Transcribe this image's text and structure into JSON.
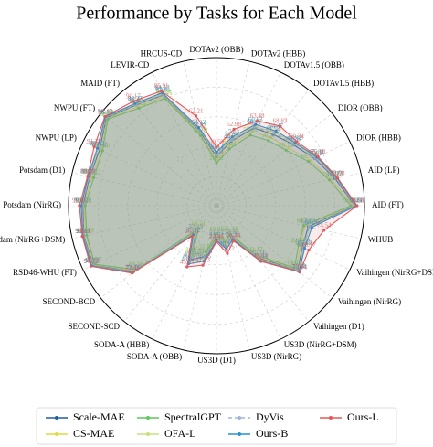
{
  "chart_data": {
    "type": "radar",
    "title": "Performance by Tasks for Each Model",
    "categories": [
      "AID (FT)",
      "AID (LP)",
      "DIOR (HBB)",
      "DIOR (OBB)",
      "DOTAv1.5 (HBB)",
      "DOTAv1.5 (OBB)",
      "DOTAv2 (HBB)",
      "DOTAv2 (OBB)",
      "HRCUS-CD",
      "LEVIR-CD",
      "MAID (FT)",
      "NWPU (FT)",
      "NWPU (LP)",
      "Potsdam (D1)",
      "Potsdam (NirRG)",
      "Potsdam (NirRG+DSM)",
      "RSD46-WHU (FT)",
      "SECOND-BCD",
      "SECOND-SCD",
      "SODA-A (HBB)",
      "SODA-A (OBB)",
      "US3D (D1)",
      "US3D (NirRG)",
      "US3D (NirRG+DSM)",
      "Vaihingen (D1)",
      "Vaihingen (NirRG)",
      "Vaihingen (NirRG+DSM)",
      "WHUB"
    ],
    "ylim": [
      0,
      100
    ],
    "yticks": [
      20,
      40,
      60,
      80,
      100
    ],
    "grid": true,
    "legend": "bottom",
    "series": [
      {
        "name": "Scale-MAE",
        "color": "#1f5fa0",
        "values": [
          93.45,
          82.17,
          73.61,
          66.23,
          61.54,
          58.21,
          44.53,
          33.21,
          51.83,
          82.91,
          86.93,
          95.23,
          87.62,
          87.81,
          90.33,
          91.92,
          92.51,
          71.59,
          22.49,
          40.41,
          35.13,
          21.63,
          27.91,
          23.65,
          45.11,
          70.13,
          64.43,
          63.62
        ]
      },
      {
        "name": "CS-MAE",
        "color": "#e3d940",
        "values": [
          92.11,
          79.83,
          70.35,
          62.47,
          58.92,
          55.36,
          41.87,
          30.65,
          50.12,
          81.74,
          85.36,
          94.52,
          86.11,
          86.37,
          89.52,
          90.61,
          91.84,
          70.22,
          20.83,
          38.27,
          33.46,
          20.14,
          26.43,
          22.07,
          43.52,
          68.91,
          62.85,
          61.27
        ]
      },
      {
        "name": "SpectralGPT",
        "color": "#5cc85c",
        "values": [
          90.73,
          78.27,
          68.94,
          60.13,
          56.27,
          52.84,
          39.41,
          28.92,
          48.63,
          80.45,
          84.21,
          93.84,
          85.46,
          85.12,
          88.71,
          89.93,
          91.27,
          69.38,
          19.71,
          36.92,
          31.85,
          19.06,
          25.12,
          21.33,
          42.17,
          67.42,
          61.58,
          60.43
        ]
      },
      {
        "name": "OFA-L",
        "color": "#c5e27a",
        "values": [
          94.13,
          83.12,
          74.82,
          67.55,
          63.21,
          59.37,
          46.18,
          34.76,
          53.21,
          83.57,
          87.71,
          95.88,
          88.73,
          88.46,
          91.08,
          92.37,
          93.12,
          72.14,
          23.57,
          41.93,
          36.42,
          22.38,
          28.83,
          24.27,
          46.63,
          71.02,
          65.39,
          64.81
        ]
      },
      {
        "name": "DyVis",
        "color": "#9db6d8",
        "values": [
          93.87,
          82.73,
          73.97,
          66.81,
          62.37,
          58.93,
          45.22,
          33.86,
          52.47,
          83.21,
          87.12,
          95.47,
          88.19,
          88.03,
          90.72,
          92.14,
          92.87,
          71.83,
          22.91,
          40.88,
          35.67,
          21.94,
          28.24,
          23.91,
          45.73,
          70.62,
          64.87,
          64.13
        ]
      },
      {
        "name": "Ours-B",
        "color": "#2a8fd0",
        "values": [
          94.58,
          83.61,
          75.34,
          68.12,
          64.47,
          60.83,
          47.63,
          36.14,
          54.12,
          84.57,
          88.27,
          96.13,
          89.42,
          88.93,
          91.52,
          92.63,
          93.72,
          72.46,
          25.12,
          43.68,
          38.45,
          23.51,
          30.12,
          25.31,
          47.64,
          71.44,
          66.12,
          66.06
        ]
      },
      {
        "name": "Ours-L",
        "color": "#e05a5a",
        "values": [
          94.99,
          83.98,
          76.18,
          69.34,
          68.83,
          63.48,
          52.98,
          39.59,
          62.21,
          85.91,
          90.17,
          96.47,
          91.77,
          89.39,
          92.61,
          93.03,
          94.33,
          73.02,
          26.51,
          45.91,
          41.23,
          24.46,
          33.12,
          26.44,
          48.12,
          72.04,
          69.17,
          74.54
        ]
      }
    ]
  }
}
